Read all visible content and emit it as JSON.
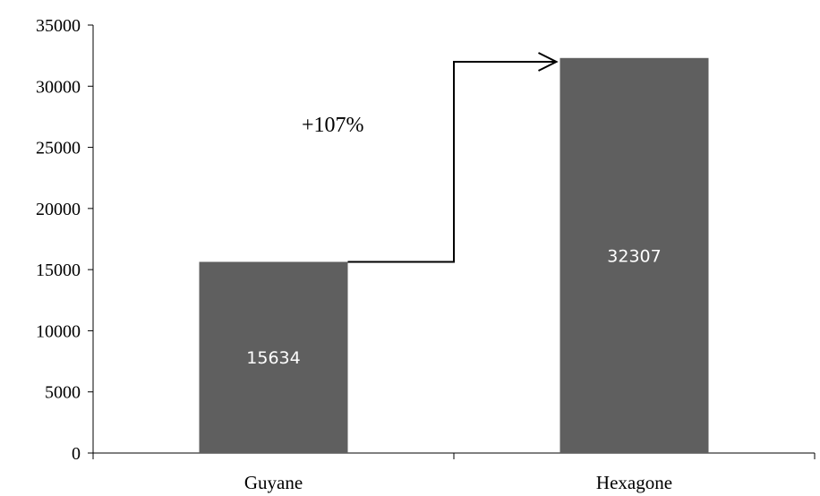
{
  "chart_data": {
    "type": "bar",
    "categories": [
      "Guyane",
      "Hexagone"
    ],
    "values": [
      15634,
      32307
    ],
    "data_labels": [
      "15634",
      "32307"
    ],
    "title": "",
    "xlabel": "",
    "ylabel": "",
    "ylim": [
      0,
      35000
    ],
    "yticks": [
      0,
      5000,
      10000,
      15000,
      20000,
      25000,
      30000,
      35000
    ],
    "ytick_labels": [
      "0",
      "5000",
      "10000",
      "15000",
      "20000",
      "25000",
      "30000",
      "35000"
    ],
    "grid": false,
    "legend": "none",
    "bar_color": "#5f5f5f",
    "annotation": {
      "text": "+107%",
      "from_category": "Guyane",
      "to_category": "Hexagone",
      "arrow_level": 32000
    }
  }
}
